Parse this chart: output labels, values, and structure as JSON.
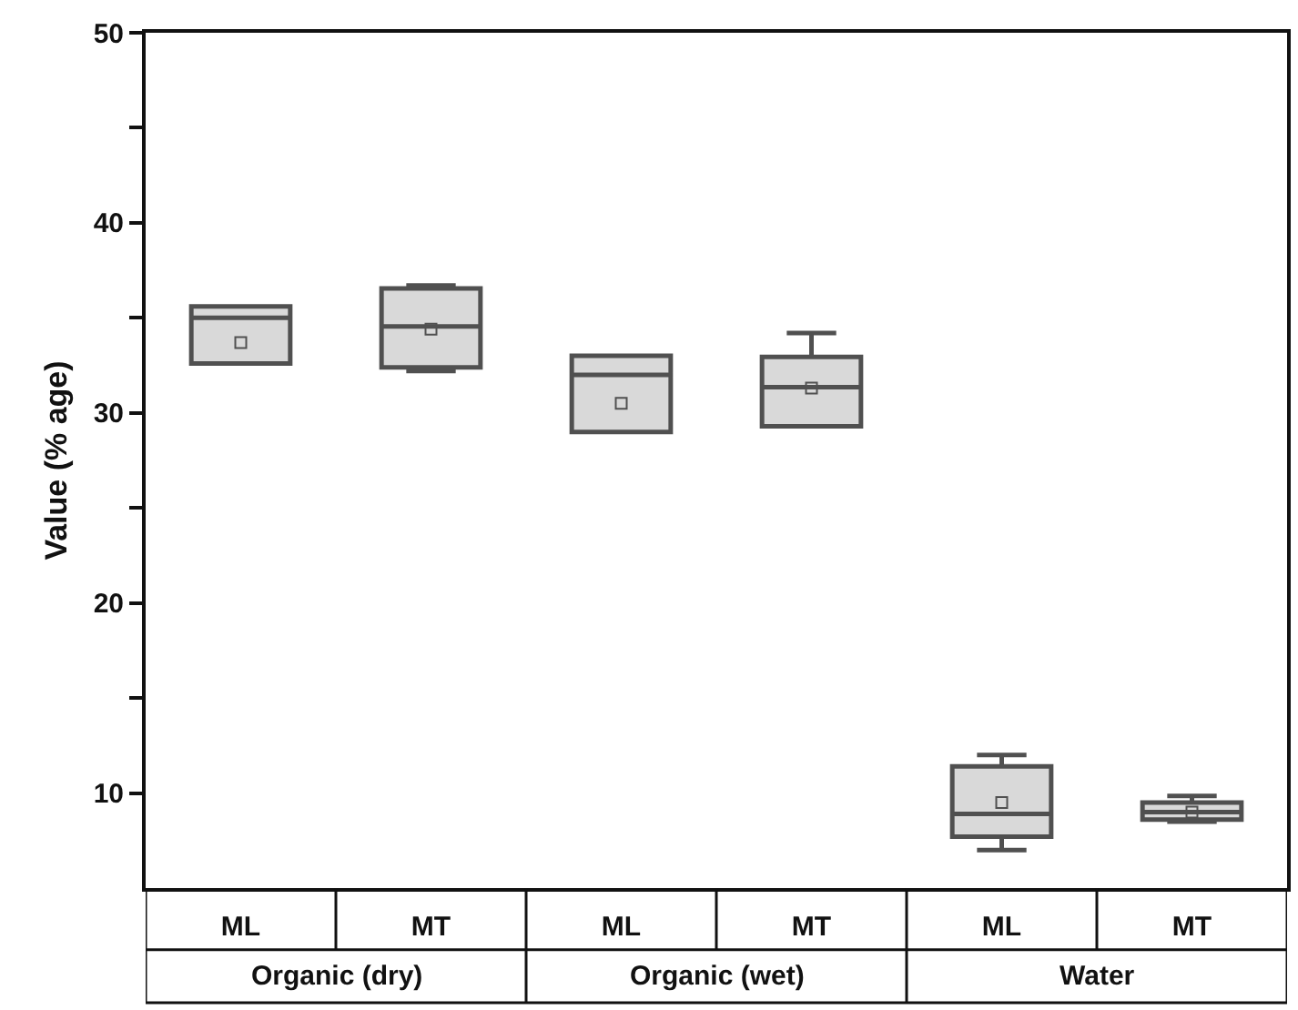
{
  "chart_data": {
    "type": "box",
    "ylabel": "Value (% age)",
    "categories": [
      "ML",
      "MT",
      "ML",
      "MT",
      "ML",
      "MT"
    ],
    "annotations": [
      "Organic (dry)",
      "Organic (wet)",
      "Water"
    ],
    "boxes": [
      {
        "low": 32.6,
        "q1": 32.6,
        "median": 35.0,
        "q3": 35.6,
        "high": 35.6,
        "mean": 33.7
      },
      {
        "low": 32.2,
        "q1": 32.4,
        "median": 34.55,
        "q3": 36.55,
        "high": 36.7,
        "mean": 34.4
      },
      {
        "low": 29.0,
        "q1": 29.0,
        "median": 32.0,
        "q3": 33.0,
        "high": 33.0,
        "mean": 30.5
      },
      {
        "low": 29.3,
        "q1": 29.3,
        "median": 31.35,
        "q3": 32.95,
        "high": 34.2,
        "mean": 31.3
      },
      {
        "low": 7.0,
        "q1": 7.7,
        "median": 8.9,
        "q3": 11.4,
        "high": 12.0,
        "mean": 9.5
      },
      {
        "low": 8.5,
        "q1": 8.6,
        "median": 9.0,
        "q3": 9.5,
        "high": 9.85,
        "mean": 9.0
      }
    ],
    "color": "#505050",
    "ylim": [
      5,
      50
    ],
    "yticks": [
      10,
      {
        "value": 15,
        "label": null
      },
      20,
      {
        "value": 25,
        "label": null
      },
      30,
      {
        "value": 35,
        "label": null
      },
      40,
      {
        "value": 45,
        "label": null
      },
      50
    ]
  }
}
